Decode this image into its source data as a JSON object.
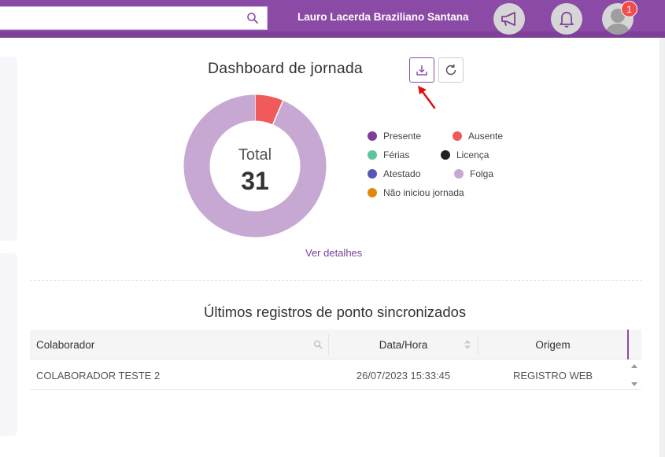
{
  "header": {
    "search_placeholder": "",
    "user_name": "Lauro Lacerda Braziliano Santana",
    "notification_count": "1"
  },
  "dashboard": {
    "title": "Dashboard de jornada",
    "total_label": "Total",
    "total_value": "31",
    "details_link": "Ver detalhes",
    "legend": [
      {
        "label": "Presente",
        "color": "#7d3f98"
      },
      {
        "label": "Ausente",
        "color": "#f15a5a"
      },
      {
        "label": "Férias",
        "color": "#5cc59b"
      },
      {
        "label": "Licença",
        "color": "#222222"
      },
      {
        "label": "Atestado",
        "color": "#5559b5"
      },
      {
        "label": "Folga",
        "color": "#c7a8d3"
      },
      {
        "label": "Não iniciou jornada",
        "color": "#e08a0d"
      }
    ],
    "chart_data": {
      "type": "pie",
      "categories": [
        "Ausente",
        "Folga"
      ],
      "values": [
        2,
        29
      ],
      "colors": [
        "#f15a5a",
        "#c7a8d3"
      ]
    }
  },
  "records": {
    "title": "Últimos registros de ponto sincronizados",
    "columns": [
      "Colaborador",
      "Data/Hora",
      "Origem"
    ],
    "rows": [
      [
        "COLABORADOR TESTE 2",
        "26/07/2023 15:33:45",
        "REGISTRO WEB"
      ]
    ]
  }
}
